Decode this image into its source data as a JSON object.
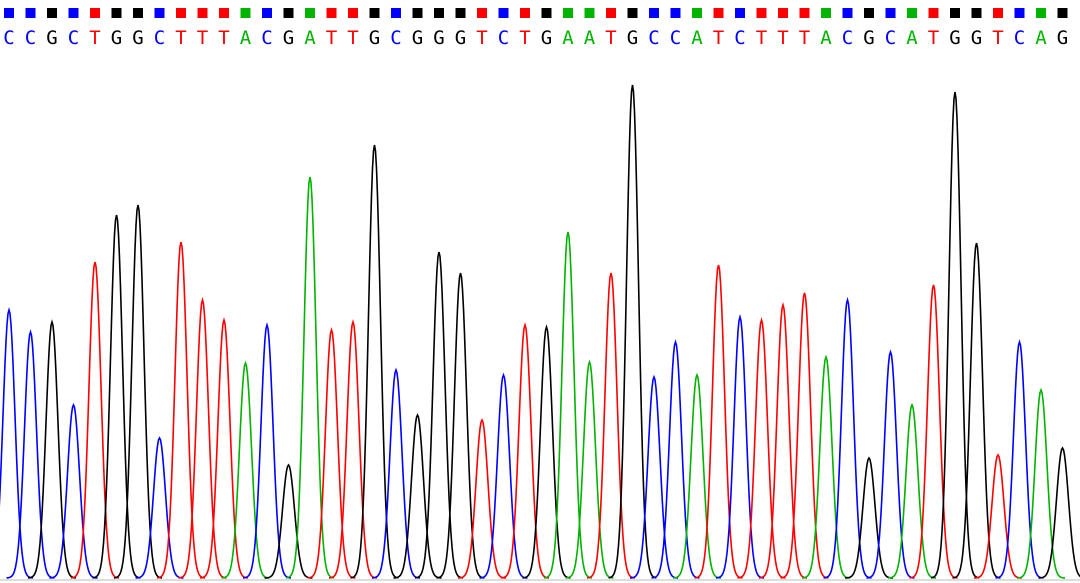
{
  "chart_data": {
    "type": "chromatogram",
    "colors": {
      "A": "#00b400",
      "C": "#0000ff",
      "G": "#000000",
      "T": "#ff0000"
    },
    "bases": [
      "C",
      "C",
      "G",
      "C",
      "T",
      "G",
      "G",
      "C",
      "T",
      "T",
      "T",
      "A",
      "C",
      "G",
      "A",
      "T",
      "T",
      "G",
      "C",
      "G",
      "G",
      "G",
      "T",
      "C",
      "T",
      "G",
      "A",
      "A",
      "T",
      "G",
      "C",
      "C",
      "A",
      "T",
      "C",
      "T",
      "T",
      "T",
      "A",
      "C",
      "G",
      "C",
      "A",
      "T",
      "G",
      "G",
      "T",
      "C",
      "A",
      "G"
    ],
    "values": [
      268,
      246,
      256,
      173,
      316,
      363,
      373,
      140,
      336,
      278,
      258,
      215,
      253,
      113,
      401,
      248,
      256,
      433,
      208,
      163,
      326,
      305,
      158,
      203,
      253,
      251,
      346,
      216,
      305,
      493,
      201,
      236,
      203,
      313,
      261,
      258,
      273,
      285,
      221,
      278,
      120,
      226,
      173,
      293,
      486,
      335,
      123,
      236,
      188,
      130
    ]
  }
}
